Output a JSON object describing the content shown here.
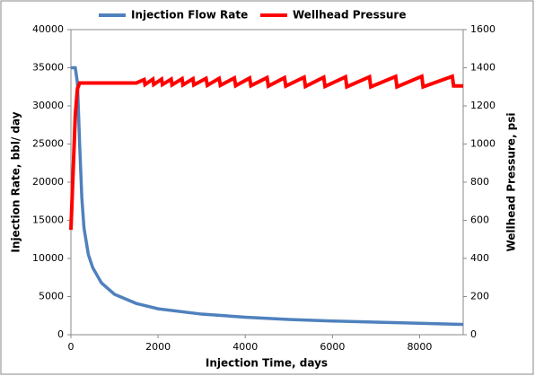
{
  "chart_data": {
    "type": "line",
    "xlabel": "Injection Time, days",
    "ylabel": "Injection Rate, bbl/ day",
    "y2label": "Wellhead Pressure, psi",
    "xlim": [
      0,
      9000
    ],
    "xticks": [
      0,
      2000,
      4000,
      6000,
      8000
    ],
    "ylim": [
      0,
      40000
    ],
    "yticks": [
      0,
      5000,
      10000,
      15000,
      20000,
      25000,
      30000,
      35000,
      40000
    ],
    "y2lim": [
      0,
      1600
    ],
    "y2ticks": [
      0,
      200,
      400,
      600,
      800,
      1000,
      1200,
      1400,
      1600
    ],
    "legend": "top",
    "series": [
      {
        "name": "Injection Flow Rate",
        "color": "#4f81bd",
        "x": [
          0,
          100,
          150,
          200,
          250,
          300,
          400,
          500,
          700,
          1000,
          1500,
          2000,
          3000,
          4000,
          5000,
          6000,
          7000,
          8000,
          9000
        ],
        "values": [
          35000,
          35000,
          33000,
          25000,
          18000,
          14000,
          10500,
          8800,
          6800,
          5300,
          4100,
          3400,
          2700,
          2300,
          2000,
          1800,
          1650,
          1500,
          1350
        ]
      },
      {
        "name": "Wellhead Pressure",
        "color": "#ff0000",
        "axis": "y2",
        "x": [
          0,
          100,
          150,
          200,
          1500,
          1680,
          1700,
          1880,
          1900,
          2080,
          2100,
          2300,
          2320,
          2550,
          2570,
          2800,
          2820,
          3100,
          3130,
          3400,
          3430,
          3750,
          3780,
          4100,
          4130,
          4500,
          4530,
          4900,
          4930,
          5350,
          5380,
          5800,
          5830,
          6300,
          6330,
          6850,
          6880,
          7450,
          7480,
          8050,
          8080,
          8750,
          8780,
          9000
        ],
        "values": [
          550,
          1150,
          1290,
          1320,
          1320,
          1338,
          1312,
          1340,
          1312,
          1340,
          1312,
          1340,
          1310,
          1342,
          1310,
          1342,
          1310,
          1344,
          1308,
          1344,
          1308,
          1346,
          1306,
          1346,
          1306,
          1348,
          1304,
          1348,
          1304,
          1350,
          1302,
          1350,
          1302,
          1352,
          1300,
          1352,
          1300,
          1354,
          1300,
          1355,
          1300,
          1355,
          1305,
          1305
        ]
      }
    ]
  }
}
